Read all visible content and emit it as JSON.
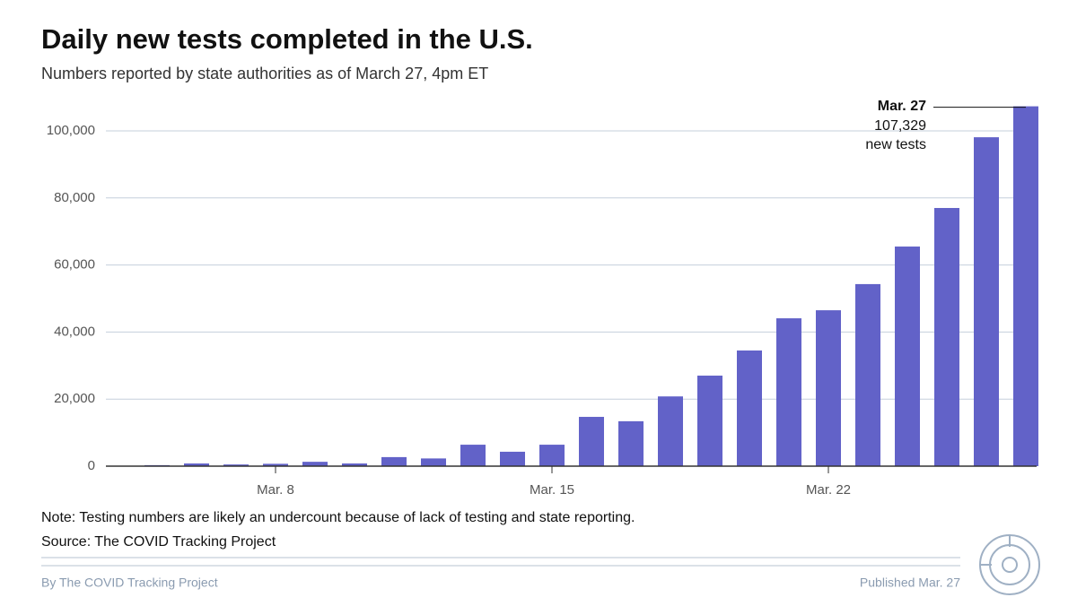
{
  "chart_data": {
    "type": "bar",
    "title": "Daily new tests completed in the U.S.",
    "subtitle": "Numbers reported by state authorities as of March 27, 4pm ET",
    "categories": [
      null,
      null,
      null,
      "Mar. 8",
      null,
      null,
      null,
      null,
      null,
      null,
      "Mar. 15",
      null,
      null,
      null,
      null,
      null,
      null,
      "Mar. 22",
      null,
      null,
      null,
      null,
      null
    ],
    "values": [
      300,
      800,
      500,
      700,
      1300,
      800,
      2700,
      2300,
      6400,
      4300,
      6400,
      14700,
      13400,
      20800,
      27000,
      34500,
      44100,
      46500,
      54300,
      65500,
      77000,
      98100,
      107329
    ],
    "value_labels": [
      null,
      null,
      null,
      null,
      null,
      null,
      null,
      null,
      null,
      null,
      null,
      null,
      null,
      null,
      null,
      null,
      null,
      null,
      null,
      null,
      null,
      null,
      "107,329"
    ],
    "annotation": {
      "date": "Mar. 27",
      "text": "new tests"
    },
    "color": "#6262c8",
    "ylim": [
      0,
      110000
    ],
    "yticks": [
      0,
      {
        "value": 20000,
        "label": "20,000"
      },
      {
        "value": 40000,
        "label": "40,000"
      },
      {
        "value": 60000,
        "label": "60,000"
      },
      {
        "value": 80000,
        "label": "80,000"
      },
      {
        "value": 100000,
        "label": "100,000"
      }
    ],
    "grid": true,
    "note": "Note: Testing numbers are likely an undercount because of lack of testing and state reporting.",
    "source": "Source: The COVID Tracking Project",
    "byline": "By The COVID Tracking Project",
    "published": "Published Mar. 27"
  }
}
